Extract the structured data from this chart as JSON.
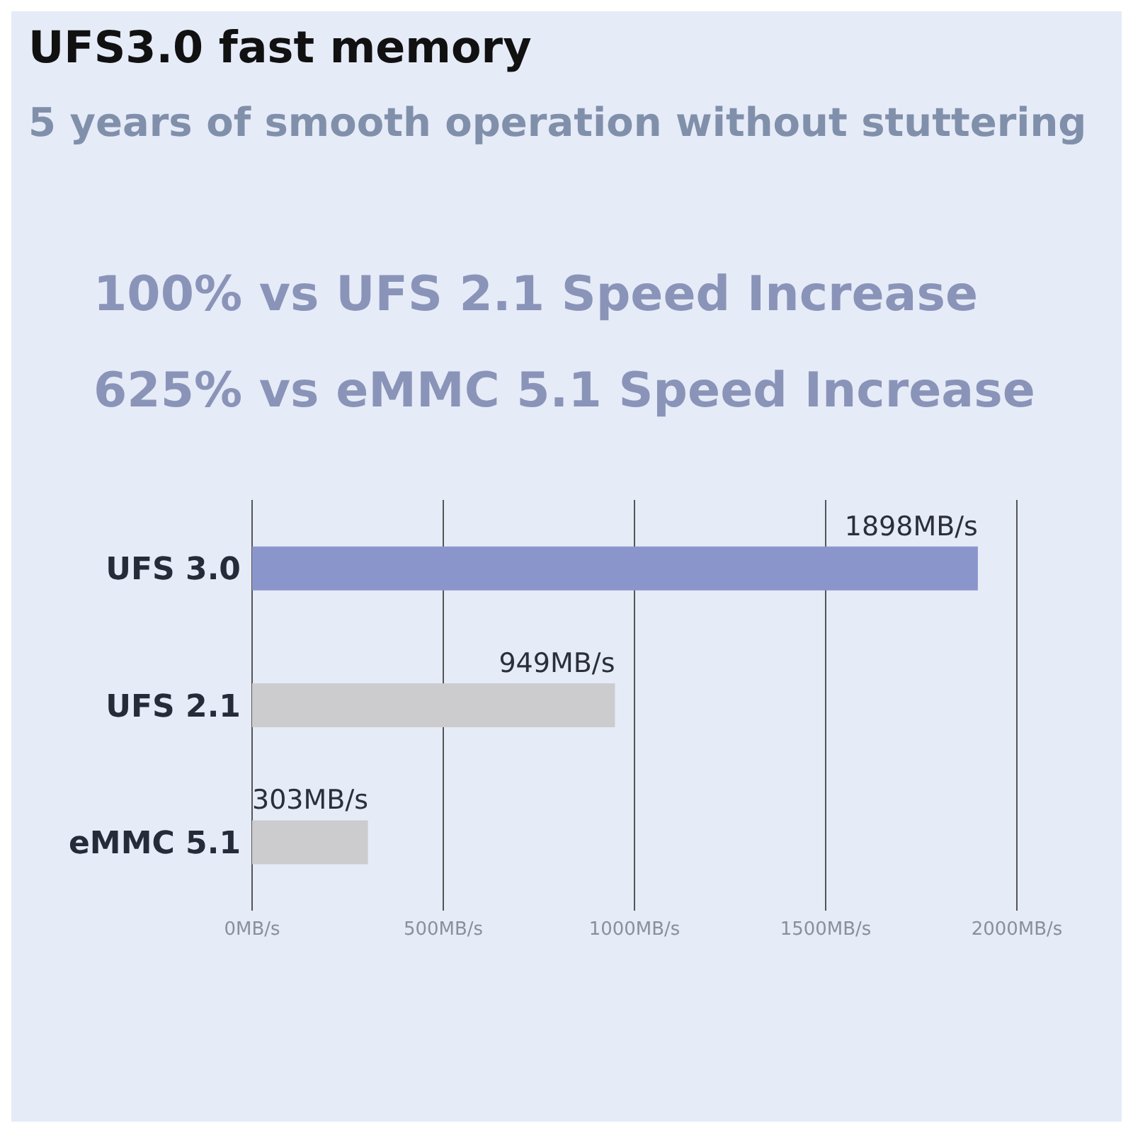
{
  "chart_data": {
    "type": "bar",
    "orientation": "horizontal",
    "title": "UFS3.0 fast memory",
    "subtitle": "5 years of smooth operation without stuttering",
    "annotations": [
      "100% vs UFS 2.1 Speed Increase",
      "625% vs eMMC 5.1 Speed Increase"
    ],
    "categories": [
      "UFS 3.0",
      "UFS  2.1",
      "eMMC 5.1"
    ],
    "values": [
      1898,
      949,
      303
    ],
    "value_labels": [
      "1898MB/s",
      "949MB/s",
      "303MB/s"
    ],
    "colors": [
      "#8a96cb",
      "#cccccf",
      "#cccccf"
    ],
    "xlim": [
      0,
      2000
    ],
    "xticks": [
      {
        "value": 0,
        "label": "0MB/s"
      },
      {
        "value": 500,
        "label": "500MB/s"
      },
      {
        "value": 1000,
        "label": "1000MB/s"
      },
      {
        "value": 1500,
        "label": "1500MB/s"
      },
      {
        "value": 2000,
        "label": "2000MB/s"
      }
    ],
    "grid": "x"
  }
}
